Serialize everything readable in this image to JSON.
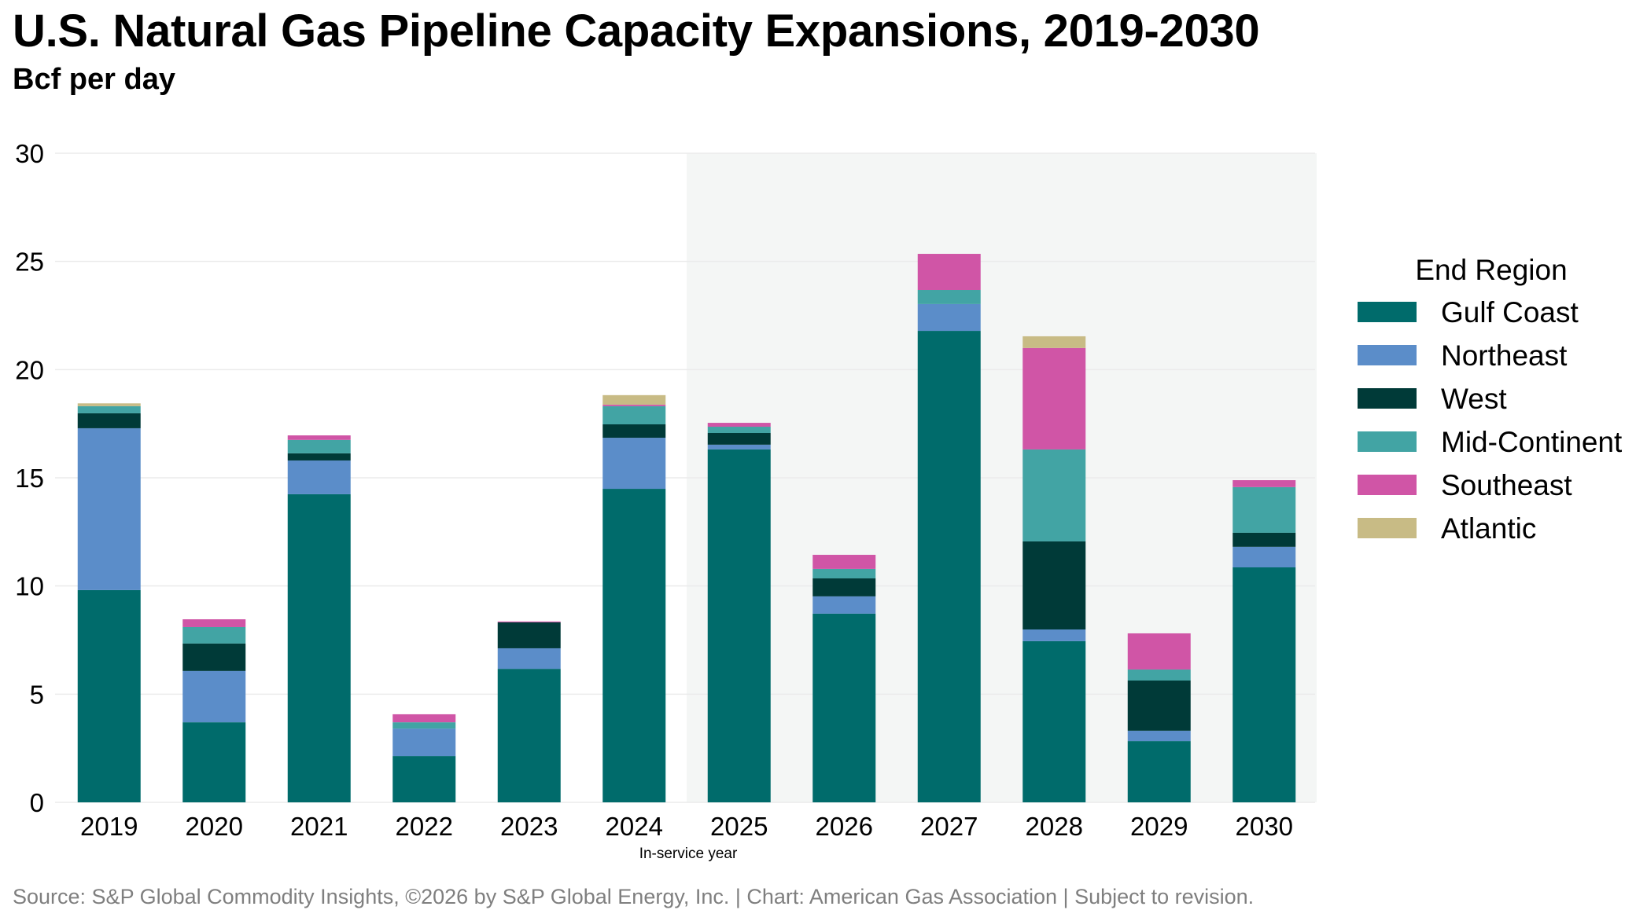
{
  "header": {
    "title": "U.S. Natural Gas Pipeline Capacity Expansions, 2019-2030",
    "subtitle": "Bcf per day"
  },
  "footer": {
    "source": "Source: S&P Global Commodity Insights, ©2026 by S&P Global Energy, Inc. | Chart: American Gas Association | Subject to revision."
  },
  "chart_data": {
    "type": "bar",
    "stacked": true,
    "title": "U.S. Natural Gas Pipeline Capacity Expansions, 2019-2030",
    "subtitle": "Bcf per day",
    "xlabel": "In-service year",
    "ylabel": "",
    "ylim": [
      0,
      30
    ],
    "yticks": [
      0,
      5,
      10,
      15,
      20,
      25,
      30
    ],
    "grid": true,
    "shaded_range": {
      "from": "2025",
      "to": "2030",
      "color": "#f4f6f5"
    },
    "categories": [
      "2019",
      "2020",
      "2021",
      "2022",
      "2023",
      "2024",
      "2025",
      "2026",
      "2027",
      "2028",
      "2029",
      "2030"
    ],
    "legend": {
      "title": "End Region",
      "position": "right"
    },
    "series": [
      {
        "name": "Gulf Coast",
        "color": "#006b6b",
        "values": [
          9.81,
          3.7,
          14.24,
          2.14,
          6.17,
          14.49,
          16.31,
          8.72,
          21.79,
          7.45,
          2.83,
          10.86
        ]
      },
      {
        "name": "Northeast",
        "color": "#5b8dc9",
        "values": [
          7.48,
          2.37,
          1.56,
          1.27,
          0.95,
          2.36,
          0.22,
          0.8,
          1.24,
          0.54,
          0.48,
          0.95
        ]
      },
      {
        "name": "West",
        "color": "#003a38",
        "values": [
          0.69,
          1.27,
          0.33,
          0.0,
          1.2,
          0.62,
          0.54,
          0.83,
          0.0,
          4.07,
          2.32,
          0.65
        ]
      },
      {
        "name": "Mid-Continent",
        "color": "#42a4a4",
        "values": [
          0.33,
          0.76,
          0.62,
          0.29,
          0.0,
          0.84,
          0.29,
          0.44,
          0.65,
          4.25,
          0.51,
          2.11
        ]
      },
      {
        "name": "Southeast",
        "color": "#d055a6",
        "values": [
          0.0,
          0.36,
          0.21,
          0.37,
          0.04,
          0.07,
          0.18,
          0.65,
          1.67,
          4.69,
          1.67,
          0.32
        ]
      },
      {
        "name": "Atlantic",
        "color": "#c8bb85",
        "values": [
          0.13,
          0.0,
          0.0,
          0.0,
          0.0,
          0.44,
          0.0,
          0.0,
          0.0,
          0.54,
          0.0,
          0.0
        ]
      }
    ]
  }
}
